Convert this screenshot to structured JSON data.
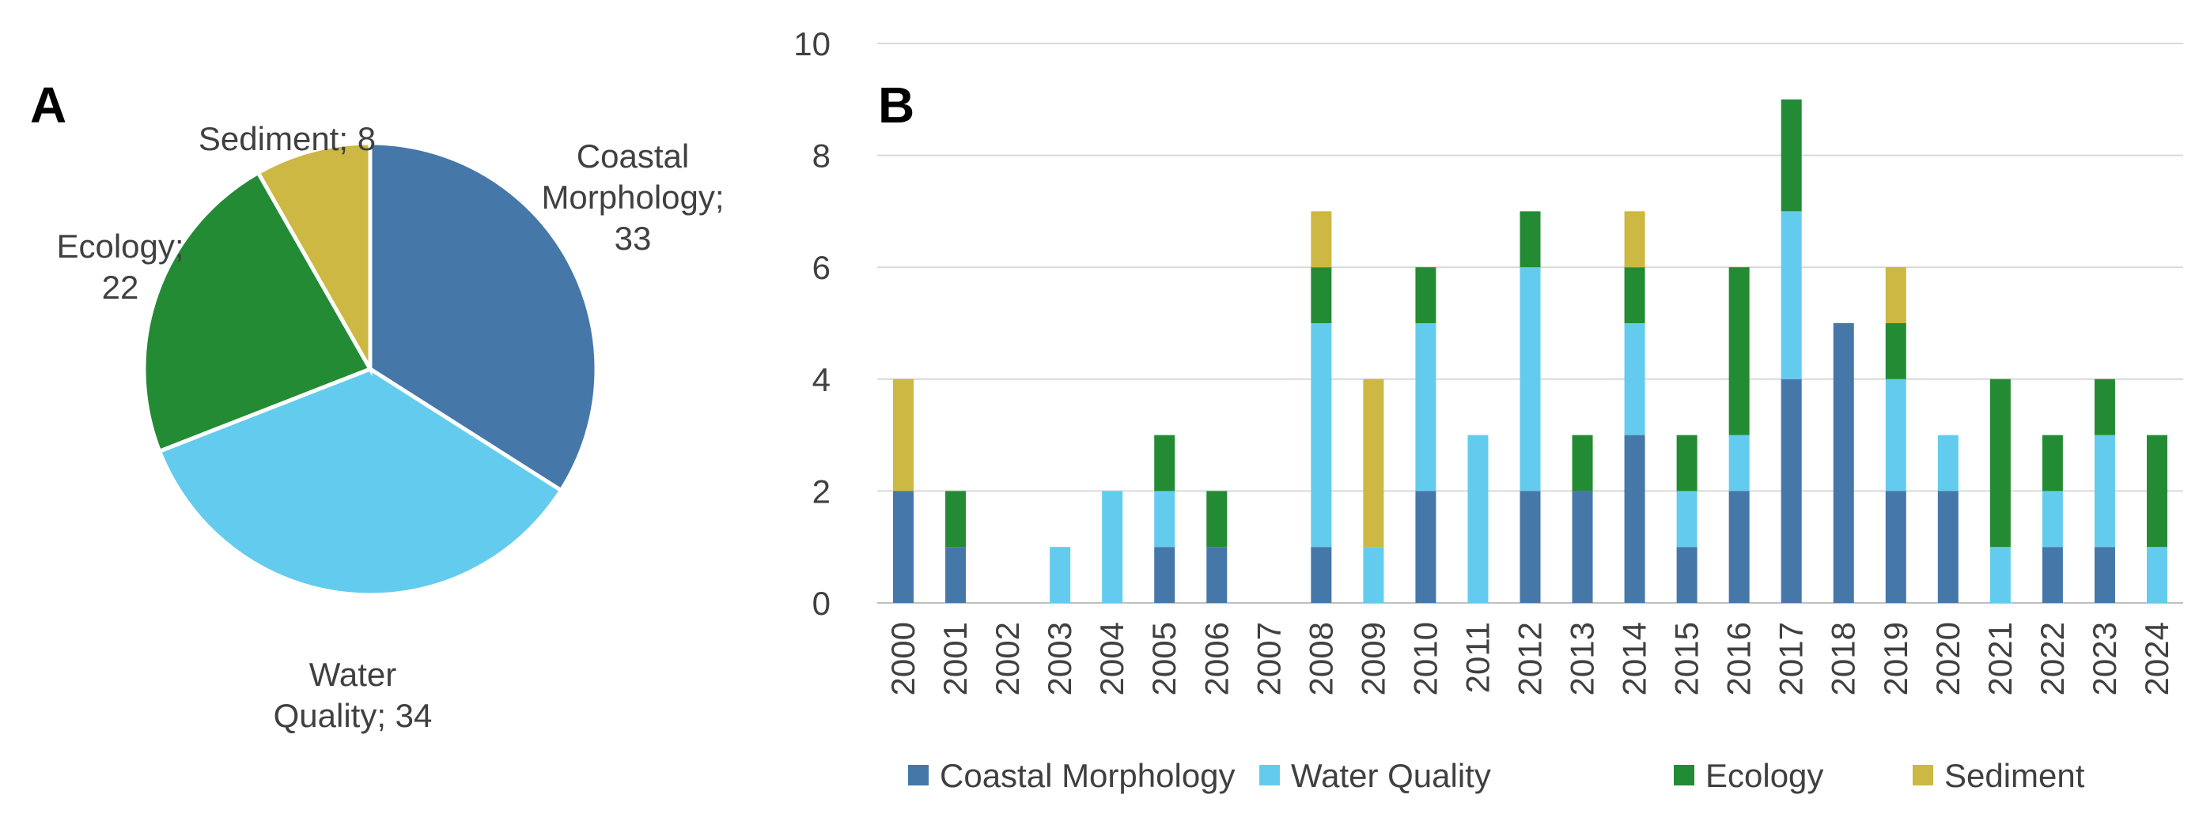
{
  "panels": {
    "a_label": "A",
    "b_label": "B"
  },
  "colors": {
    "Coastal Morphology": "#4577A9",
    "Water Quality": "#63CCEE",
    "Ecology": "#238B34",
    "Sediment": "#CCB842"
  },
  "chart_data": [
    {
      "type": "pie",
      "panel": "A",
      "title": "",
      "start_angle": "12 o'clock",
      "direction": "clockwise",
      "slices": [
        {
          "name": "Coastal Morphology",
          "value": 33,
          "label_lines": [
            "Coastal",
            "Morphology;",
            "33"
          ]
        },
        {
          "name": "Water Quality",
          "value": 34,
          "label_lines": [
            "Water",
            "Quality; 34"
          ]
        },
        {
          "name": "Ecology",
          "value": 22,
          "label_lines": [
            "Ecology;",
            "22"
          ]
        },
        {
          "name": "Sediment",
          "value": 8,
          "label_lines": [
            "Sediment; 8"
          ]
        }
      ]
    },
    {
      "type": "bar",
      "stacked": true,
      "panel": "B",
      "title": "",
      "xlabel": "",
      "ylabel": "",
      "ylim": [
        0,
        10
      ],
      "yticks": [
        0,
        2,
        4,
        6,
        8,
        10
      ],
      "grid": "horizontal",
      "legend": "bottom",
      "categories": [
        "2000",
        "2001",
        "2002",
        "2003",
        "2004",
        "2005",
        "2006",
        "2007",
        "2008",
        "2009",
        "2010",
        "2011",
        "2012",
        "2013",
        "2014",
        "2015",
        "2016",
        "2017",
        "2018",
        "2019",
        "2020",
        "2021",
        "2022",
        "2023",
        "2024"
      ],
      "series": [
        {
          "name": "Coastal Morphology",
          "values": [
            2,
            1,
            0,
            0,
            0,
            1,
            1,
            0,
            1,
            0,
            2,
            0,
            2,
            2,
            3,
            1,
            2,
            4,
            5,
            2,
            2,
            0,
            1,
            1,
            0
          ]
        },
        {
          "name": "Water Quality",
          "values": [
            0,
            0,
            0,
            1,
            2,
            1,
            0,
            0,
            4,
            1,
            3,
            3,
            4,
            0,
            2,
            1,
            1,
            3,
            0,
            2,
            1,
            1,
            1,
            2,
            1
          ]
        },
        {
          "name": "Ecology",
          "values": [
            0,
            1,
            0,
            0,
            0,
            1,
            1,
            0,
            1,
            0,
            1,
            0,
            1,
            1,
            1,
            1,
            3,
            2,
            0,
            1,
            0,
            3,
            1,
            1,
            2
          ]
        },
        {
          "name": "Sediment",
          "values": [
            2,
            0,
            0,
            0,
            0,
            0,
            0,
            0,
            1,
            3,
            0,
            0,
            0,
            0,
            1,
            0,
            0,
            0,
            0,
            1,
            0,
            0,
            0,
            0,
            0
          ]
        }
      ]
    }
  ]
}
